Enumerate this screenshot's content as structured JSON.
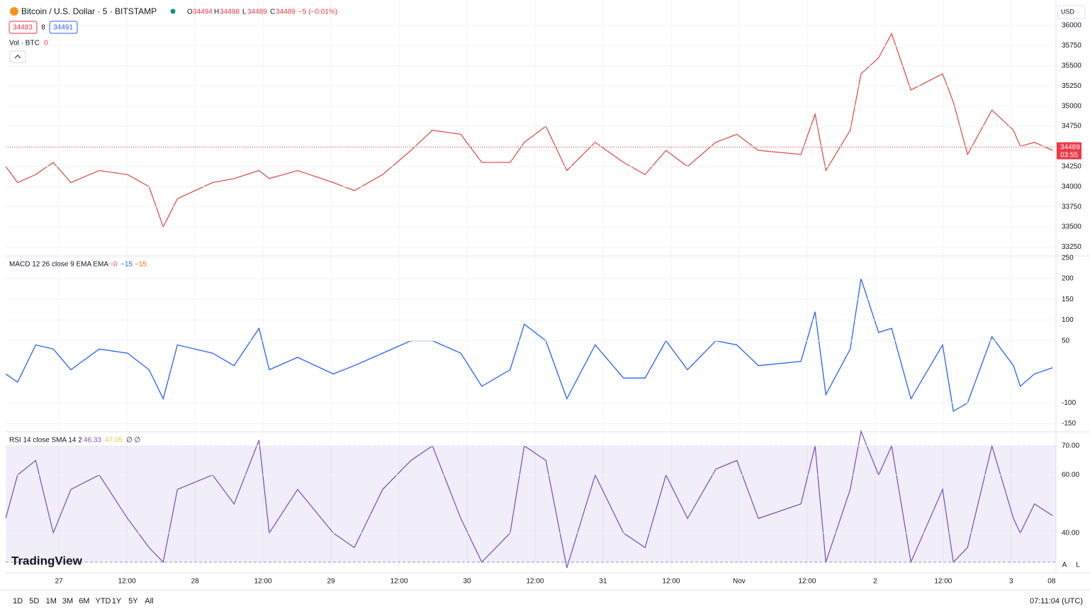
{
  "header": {
    "symbol": "Bitcoin / U.S. Dollar · 5 · BITSTAMP",
    "ohlc": [
      {
        "label": "O",
        "value": "34494"
      },
      {
        "label": "H",
        "value": "34498"
      },
      {
        "label": "L",
        "value": "34489"
      },
      {
        "label": "C",
        "value": "34489"
      }
    ],
    "change": "−5 (−0.01%)",
    "bid": "34483",
    "spread": "8",
    "ask": "34491",
    "currency": "USD"
  },
  "volume_legend": {
    "title": "Vol · BTC",
    "value": "0"
  },
  "macd_legend": {
    "title": "MACD 12 26 close 9 EMA EMA",
    "values": [
      "−0",
      "−15",
      "−15"
    ]
  },
  "rsi_legend": {
    "title": "RSI 14 close SMA 14 2",
    "values": [
      "46.33",
      "47.05"
    ],
    "extra": "∅ ∅"
  },
  "logo": "TradingView",
  "chart_data": [
    {
      "type": "line",
      "name": "price",
      "color": "#e0524b",
      "x": [
        -9.4,
        -7.3,
        -4.1,
        -1,
        2.1,
        7.1,
        12.1,
        15.9,
        18.4,
        20.9,
        27.1,
        30.9,
        35.3,
        37.1,
        42.1,
        48.4,
        52.1,
        57.1,
        62.1,
        65.9,
        70.9,
        74.6,
        79.6,
        82.1,
        85.9,
        89.6,
        94.6,
        99.6,
        103.4,
        107.1,
        110.9,
        115.9,
        119.6,
        123.4,
        130.9,
        133.4,
        135.3,
        139.6,
        141.5,
        144.6,
        146.9,
        150.3,
        155.9,
        157.8,
        160.3,
        164.6,
        168.4,
        169.6,
        172.1,
        175.3
      ],
      "values": [
        34250,
        34050,
        34150,
        34300,
        34050,
        34200,
        34150,
        34000,
        33500,
        33850,
        34050,
        34100,
        34200,
        34100,
        34200,
        34050,
        33950,
        34150,
        34450,
        34700,
        34650,
        34300,
        34300,
        34550,
        34750,
        34200,
        34550,
        34300,
        34150,
        34450,
        34250,
        34550,
        34650,
        34450,
        34400,
        34900,
        34200,
        34700,
        35400,
        35600,
        35900,
        35200,
        35400,
        35050,
        34400,
        34950,
        34700,
        34500,
        34550,
        34450
      ],
      "last": {
        "value": 34489,
        "label": "34489",
        "countdown": "03:55"
      },
      "ylim": [
        33148,
        36317
      ],
      "yticks": [
        36000,
        35750,
        35500,
        35250,
        35000,
        34750,
        34500,
        34250,
        34000,
        33750,
        33500,
        33250
      ],
      "xlim": [
        -9.4,
        175.9
      ],
      "xticks": [
        {
          "value": 0,
          "label": "27"
        },
        {
          "value": 12,
          "label": "12:00"
        },
        {
          "value": 24,
          "label": "28"
        },
        {
          "value": 36,
          "label": "12:00"
        },
        {
          "value": 48,
          "label": "29"
        },
        {
          "value": 60,
          "label": "12:00"
        },
        {
          "value": 72,
          "label": "30"
        },
        {
          "value": 84,
          "label": "12:00"
        },
        {
          "value": 96,
          "label": "31"
        },
        {
          "value": 108,
          "label": "12:00"
        },
        {
          "value": 120,
          "label": "Nov"
        },
        {
          "value": 132,
          "label": "12:00"
        },
        {
          "value": 144,
          "label": "2"
        },
        {
          "value": 156,
          "label": "12:00"
        },
        {
          "value": 168,
          "label": "3"
        },
        {
          "value": 176,
          "label": "08:00"
        }
      ]
    },
    {
      "type": "line",
      "name": "macd",
      "color": "#2962ff",
      "values": [
        -30,
        -50,
        40,
        30,
        -20,
        30,
        20,
        -20,
        -90,
        40,
        20,
        -10,
        80,
        -20,
        10,
        -30,
        -10,
        20,
        50,
        50,
        20,
        -60,
        -20,
        90,
        50,
        -90,
        40,
        -40,
        -40,
        50,
        -20,
        50,
        40,
        -10,
        0,
        120,
        -80,
        30,
        200,
        70,
        80,
        -90,
        40,
        -120,
        -100,
        60,
        -10,
        -60,
        -30,
        -15
      ],
      "ylim": [
        -168,
        253
      ],
      "yticks": [
        250,
        200,
        150,
        100,
        50,
        -100,
        -150
      ]
    },
    {
      "type": "line",
      "name": "rsi",
      "color": "#7e57c2",
      "values": [
        45,
        60,
        65,
        40,
        55,
        60,
        45,
        35,
        30,
        55,
        60,
        50,
        72,
        40,
        55,
        40,
        35,
        55,
        65,
        70,
        45,
        30,
        40,
        70,
        65,
        28,
        60,
        40,
        35,
        60,
        45,
        62,
        65,
        45,
        50,
        70,
        30,
        55,
        75,
        60,
        70,
        30,
        55,
        30,
        35,
        70,
        45,
        40,
        50,
        46
      ],
      "band": [
        30,
        70
      ],
      "ylim": [
        26.3,
        74.6
      ],
      "yticks": [
        {
          "value": 70,
          "label": "70.00"
        },
        {
          "value": 60,
          "label": "60.00"
        },
        {
          "value": 40,
          "label": "40.00"
        }
      ]
    }
  ],
  "footer": {
    "ranges": [
      "1D",
      "5D",
      "1M",
      "3M",
      "6M",
      "YTD",
      "1Y",
      "5Y",
      "All"
    ],
    "time": "07:11:04 (UTC)",
    "scale_buttons": [
      "A",
      "L"
    ]
  }
}
